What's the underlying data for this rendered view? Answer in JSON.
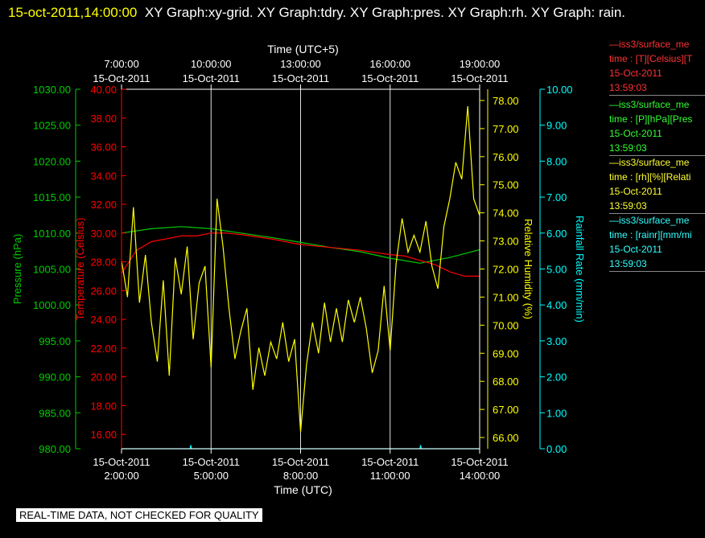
{
  "title": {
    "timestamp": "15-oct-2011,14:00:00",
    "graphs": "XY Graph:xy-grid.  XY Graph:tdry.  XY Graph:pres.  XY Graph:rh.  XY Graph: rain."
  },
  "colors": {
    "pres": "#00cc00",
    "tdry": "#ff0000",
    "rh": "#ffff00",
    "rain": "#00ffff",
    "grid": "#ffffff",
    "bg": "#000000"
  },
  "note": "REAL-TIME DATA, NOT CHECKED FOR QUALITY",
  "legend": [
    {
      "header": "—iss3/surface_me",
      "line2": "time : [T][Celsius][T",
      "date": "15-Oct-2011",
      "time": "13:59:03",
      "color": "#ff3333"
    },
    {
      "header": "—iss3/surface_me",
      "line2": "time : [P][hPa][Pres",
      "date": "15-Oct-2011",
      "time": "13:59:03",
      "color": "#33ff33"
    },
    {
      "header": "—iss3/surface_me",
      "line2": "time : [rh][%][Relati",
      "date": "15-Oct-2011",
      "time": "13:59:03",
      "color": "#ffff33"
    },
    {
      "header": "—iss3/surface_me",
      "line2": "time : [rainr][mm/mi",
      "date": "15-Oct-2011",
      "time": "13:59:03",
      "color": "#33ffff"
    }
  ],
  "chart_data": {
    "type": "line",
    "xlabel_bottom": "Time (UTC)",
    "xlabel_top": "Time (UTC+5)",
    "x_range_utc": [
      "15-Oct-2011 02:00:00",
      "15-Oct-2011 14:00:00"
    ],
    "grid": "vertical lines every 3 hours",
    "x_ticks_bottom": [
      {
        "date": "15-Oct-2011",
        "time": "2:00:00"
      },
      {
        "date": "15-Oct-2011",
        "time": "5:00:00"
      },
      {
        "date": "15-Oct-2011",
        "time": "8:00:00"
      },
      {
        "date": "15-Oct-2011",
        "time": "11:00:00"
      },
      {
        "date": "15-Oct-2011",
        "time": "14:00:00"
      }
    ],
    "x_ticks_top": [
      {
        "time": "7:00:00",
        "date": "15-Oct-2011"
      },
      {
        "time": "10:00:00",
        "date": "15-Oct-2011"
      },
      {
        "time": "13:00:00",
        "date": "15-Oct-2011"
      },
      {
        "time": "16:00:00",
        "date": "15-Oct-2011"
      },
      {
        "time": "19:00:00",
        "date": "15-Oct-2011"
      }
    ],
    "axes": {
      "pres": {
        "label": "Pressure (hPa)",
        "ylim": [
          980,
          1030
        ],
        "ticks": [
          "1030.00",
          "1025.00",
          "1020.00",
          "1015.00",
          "1010.00",
          "1005.00",
          "1000.00",
          "995.00",
          "990.00",
          "985.00",
          "980.00"
        ]
      },
      "tdry": {
        "label": "Temperature (Celsius)",
        "ylim": [
          15,
          40
        ],
        "ticks": [
          "40.00",
          "38.00",
          "36.00",
          "34.00",
          "32.00",
          "30.00",
          "28.00",
          "26.00",
          "24.00",
          "22.00",
          "20.00",
          "18.00",
          "16.00"
        ]
      },
      "rh": {
        "label": "Relative Humidity (%)",
        "ylim": [
          65.6,
          78.4
        ],
        "ticks": [
          "78.00",
          "77.00",
          "76.00",
          "75.00",
          "74.00",
          "73.00",
          "72.00",
          "71.00",
          "70.00",
          "69.00",
          "68.00",
          "67.00",
          "66.00"
        ]
      },
      "rain": {
        "label": "Rainfall Rate (mm/min)",
        "ylim": [
          0,
          10
        ],
        "ticks": [
          "10.00",
          "9.00",
          "8.00",
          "7.00",
          "6.00",
          "5.00",
          "4.00",
          "3.00",
          "2.00",
          "1.00",
          "0.00"
        ]
      }
    },
    "series": [
      {
        "name": "pres",
        "x_hours_utc": [
          2,
          3,
          4,
          5,
          6,
          7,
          8,
          9,
          10,
          11,
          12,
          13,
          14
        ],
        "values": [
          1010.0,
          1010.6,
          1010.9,
          1010.6,
          1010.0,
          1009.4,
          1008.7,
          1008.0,
          1007.4,
          1006.5,
          1005.8,
          1006.6,
          1007.7
        ]
      },
      {
        "name": "tdry",
        "x_hours_utc": [
          2,
          2.5,
          3,
          3.5,
          4,
          4.5,
          5,
          5.5,
          6,
          7,
          8,
          9,
          10,
          11,
          11.5,
          12,
          12.5,
          13,
          13.5,
          14
        ],
        "values": [
          27.2,
          28.8,
          29.4,
          29.6,
          29.8,
          29.8,
          30.0,
          30.0,
          29.9,
          29.6,
          29.2,
          29.0,
          28.8,
          28.5,
          28.4,
          28.1,
          27.8,
          27.3,
          27.0,
          27.0
        ]
      },
      {
        "name": "rh",
        "x_hours_utc": [
          2,
          2.2,
          2.4,
          2.6,
          2.8,
          3.0,
          3.2,
          3.4,
          3.6,
          3.8,
          4.0,
          4.2,
          4.4,
          4.6,
          4.8,
          5.0,
          5.2,
          5.4,
          5.6,
          5.8,
          6.0,
          6.2,
          6.4,
          6.6,
          6.8,
          7.0,
          7.2,
          7.4,
          7.6,
          7.8,
          8.0,
          8.2,
          8.4,
          8.6,
          8.8,
          9.0,
          9.2,
          9.4,
          9.6,
          9.8,
          10.0,
          10.2,
          10.4,
          10.6,
          10.8,
          11.0,
          11.2,
          11.4,
          11.6,
          11.8,
          12.0,
          12.2,
          12.4,
          12.6,
          12.8,
          13.0,
          13.2,
          13.4,
          13.6,
          13.8,
          14.0
        ],
        "values": [
          72.3,
          71.0,
          74.2,
          70.8,
          72.5,
          70.1,
          68.7,
          71.6,
          68.2,
          72.4,
          71.1,
          72.8,
          69.5,
          71.5,
          72.1,
          68.5,
          74.5,
          72.8,
          70.6,
          68.8,
          69.8,
          70.6,
          67.7,
          69.2,
          68.2,
          69.4,
          68.8,
          70.1,
          68.7,
          69.5,
          66.2,
          68.6,
          70.1,
          69.0,
          70.8,
          69.4,
          70.6,
          69.4,
          70.9,
          70.1,
          71.0,
          69.9,
          68.3,
          69.1,
          71.4,
          69.1,
          72.2,
          73.8,
          72.6,
          73.2,
          72.6,
          73.7,
          72.1,
          71.3,
          73.5,
          74.5,
          75.8,
          75.2,
          77.8,
          74.5,
          73.9
        ]
      },
      {
        "name": "rain",
        "x_hours_utc": [
          2,
          4.3,
          4.32,
          4.34,
          11.6,
          12.0,
          12.02,
          12.04,
          14
        ],
        "values": [
          0.0,
          0.0,
          0.1,
          0.0,
          0.0,
          0.0,
          0.1,
          0.0,
          0.0
        ]
      }
    ]
  }
}
